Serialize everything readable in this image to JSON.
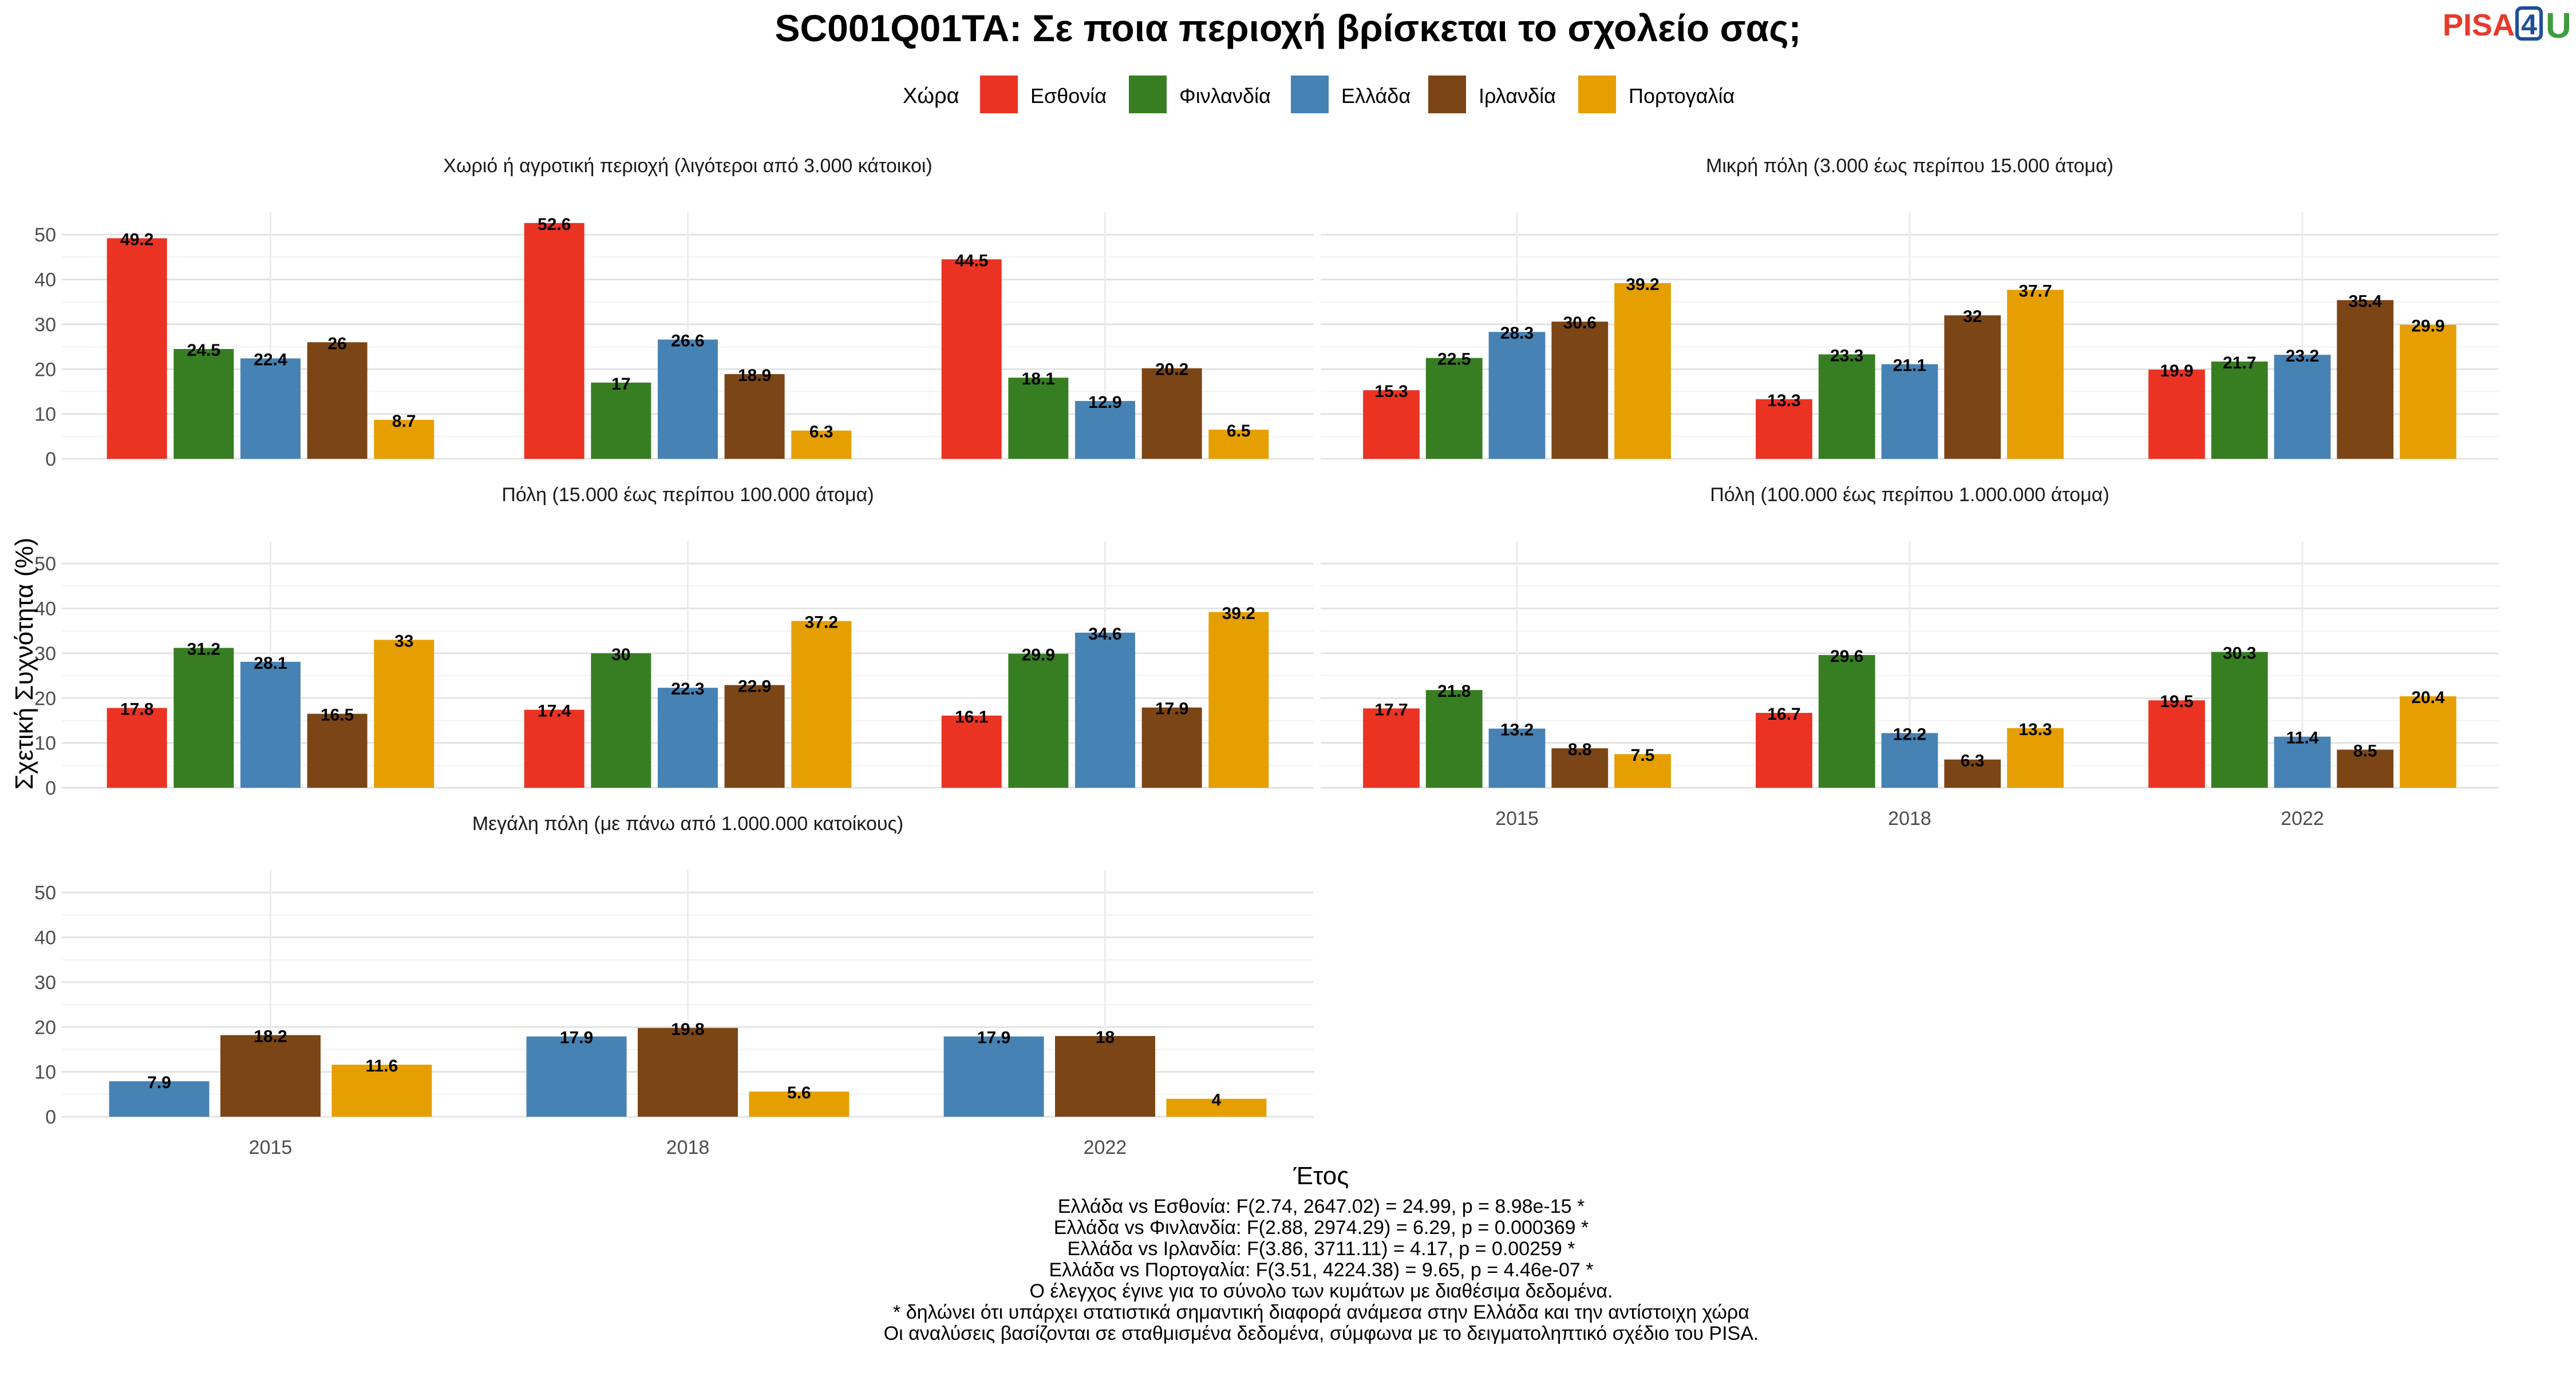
{
  "title": "SC001Q01TA: Σε ποια περιοχή βρίσκεται το σχολείο σας;",
  "logo": {
    "part1": "PISA",
    "part2": "4",
    "part3": "U",
    "colors": [
      "#e8392a",
      "#1f4e9c",
      "#3e9c3e"
    ]
  },
  "legend": {
    "title": "Χώρα",
    "items": [
      {
        "label": "Εσθονία",
        "color": "#ea3323"
      },
      {
        "label": "Φινλανδία",
        "color": "#377e22"
      },
      {
        "label": "Ελλάδα",
        "color": "#4682b4"
      },
      {
        "label": "Ιρλανδία",
        "color": "#7b4516"
      },
      {
        "label": "Πορτογαλία",
        "color": "#e69f00"
      }
    ]
  },
  "axes": {
    "xlabel": "Έτος",
    "ylabel": "Σχετική Συχνότητα (%)",
    "ylim": [
      0,
      55
    ],
    "yticks": [
      0,
      10,
      20,
      30,
      40,
      50
    ]
  },
  "chart_data": {
    "type": "bar",
    "categories": [
      "2015",
      "2018",
      "2022"
    ],
    "series_names": [
      "Εσθονία",
      "Φινλανδία",
      "Ελλάδα",
      "Ιρλανδία",
      "Πορτογαλία"
    ],
    "panels": [
      {
        "title": "Χωριό ή αγροτική περιοχή (λιγότεροι από 3.000 κάτοικοι)",
        "series": [
          {
            "name": "Εσθονία",
            "values": [
              "49.2",
              "52.6",
              "44.5"
            ]
          },
          {
            "name": "Φινλανδία",
            "values": [
              "24.5",
              "17",
              "18.1"
            ]
          },
          {
            "name": "Ελλάδα",
            "values": [
              "22.4",
              "26.6",
              "12.9"
            ]
          },
          {
            "name": "Ιρλανδία",
            "values": [
              "26",
              "18.9",
              "20.2"
            ]
          },
          {
            "name": "Πορτογαλία",
            "values": [
              "8.7",
              "6.3",
              "6.5"
            ]
          }
        ]
      },
      {
        "title": "Μικρή πόλη (3.000 έως περίπου 15.000 άτομα)",
        "series": [
          {
            "name": "Εσθονία",
            "values": [
              "15.3",
              "13.3",
              "19.9"
            ]
          },
          {
            "name": "Φινλανδία",
            "values": [
              "22.5",
              "23.3",
              "21.7"
            ]
          },
          {
            "name": "Ελλάδα",
            "values": [
              "28.3",
              "21.1",
              "23.2"
            ]
          },
          {
            "name": "Ιρλανδία",
            "values": [
              "30.6",
              "32",
              "35.4"
            ]
          },
          {
            "name": "Πορτογαλία",
            "values": [
              "39.2",
              "37.7",
              "29.9"
            ]
          }
        ]
      },
      {
        "title": "Πόλη (15.000 έως περίπου 100.000 άτομα)",
        "series": [
          {
            "name": "Εσθονία",
            "values": [
              "17.8",
              "17.4",
              "16.1"
            ]
          },
          {
            "name": "Φινλανδία",
            "values": [
              "31.2",
              "30",
              "29.9"
            ]
          },
          {
            "name": "Ελλάδα",
            "values": [
              "28.1",
              "22.3",
              "34.6"
            ]
          },
          {
            "name": "Ιρλανδία",
            "values": [
              "16.5",
              "22.9",
              "17.9"
            ]
          },
          {
            "name": "Πορτογαλία",
            "values": [
              "33",
              "37.2",
              "39.2"
            ]
          }
        ]
      },
      {
        "title": "Πόλη (100.000 έως περίπου 1.000.000 άτομα)",
        "series": [
          {
            "name": "Εσθονία",
            "values": [
              "17.7",
              "16.7",
              "19.5"
            ]
          },
          {
            "name": "Φινλανδία",
            "values": [
              "21.8",
              "29.6",
              "30.3"
            ]
          },
          {
            "name": "Ελλάδα",
            "values": [
              "13.2",
              "12.2",
              "11.4"
            ]
          },
          {
            "name": "Ιρλανδία",
            "values": [
              "8.8",
              "6.3",
              "8.5"
            ]
          },
          {
            "name": "Πορτογαλία",
            "values": [
              "7.5",
              "13.3",
              "20.4"
            ]
          }
        ]
      },
      {
        "title": "Μεγάλη πόλη (με πάνω από 1.000.000 κατοίκους)",
        "series": [
          {
            "name": "Εσθονία",
            "values": [
              null,
              null,
              null
            ]
          },
          {
            "name": "Φινλανδία",
            "values": [
              null,
              null,
              null
            ]
          },
          {
            "name": "Ελλάδα",
            "values": [
              "7.9",
              "17.9",
              "17.9"
            ]
          },
          {
            "name": "Ιρλανδία",
            "values": [
              "18.2",
              "19.8",
              "18"
            ]
          },
          {
            "name": "Πορτογαλία",
            "values": [
              "11.6",
              "5.6",
              "4"
            ]
          }
        ]
      }
    ]
  },
  "caption": [
    "Ελλάδα vs Εσθονία: F(2.74, 2647.02) = 24.99, p = 8.98e-15 *",
    "Ελλάδα vs Φινλανδία: F(2.88, 2974.29) = 6.29, p = 0.000369 *",
    "Ελλάδα vs Ιρλανδία: F(3.86, 3711.11) = 4.17, p = 0.00259 *",
    "Ελλάδα vs Πορτογαλία: F(3.51, 4224.38) = 9.65, p = 4.46e-07 *",
    "Ο έλεγχος έγινε για το σύνολο των κυμάτων με διαθέσιμα δεδομένα.",
    "* δηλώνει ότι υπάρχει στατιστικά σημαντική διαφορά ανάμεσα στην Ελλάδα και την αντίστοιχη χώρα",
    "Οι αναλύσεις βασίζονται σε σταθμισμένα δεδομένα, σύμφωνα με το δειγματοληπτικό σχέδιο του PISA."
  ]
}
